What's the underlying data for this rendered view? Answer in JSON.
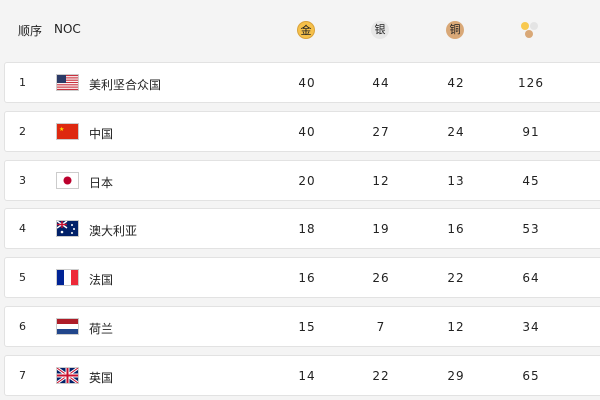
{
  "header": {
    "rank": "顺序",
    "noc": "NOC",
    "gold": "金",
    "silver": "银",
    "bronze": "铜",
    "total_icon": "medals-total-icon"
  },
  "colors": {
    "gold": "#f5c04a",
    "silver": "#e4e4e4",
    "bronze": "#d9a877"
  },
  "rows": [
    {
      "rank": "1",
      "flag": "usa",
      "name": "美利坚合众国",
      "gold": "40",
      "silver": "44",
      "bronze": "42",
      "total": "126"
    },
    {
      "rank": "2",
      "flag": "china",
      "name": "中国",
      "gold": "40",
      "silver": "27",
      "bronze": "24",
      "total": "91"
    },
    {
      "rank": "3",
      "flag": "japan",
      "name": "日本",
      "gold": "20",
      "silver": "12",
      "bronze": "13",
      "total": "45"
    },
    {
      "rank": "4",
      "flag": "australia",
      "name": "澳大利亚",
      "gold": "18",
      "silver": "19",
      "bronze": "16",
      "total": "53"
    },
    {
      "rank": "5",
      "flag": "france",
      "name": "法国",
      "gold": "16",
      "silver": "26",
      "bronze": "22",
      "total": "64"
    },
    {
      "rank": "6",
      "flag": "netherlands",
      "name": "荷兰",
      "gold": "15",
      "silver": "7",
      "bronze": "12",
      "total": "34"
    },
    {
      "rank": "7",
      "flag": "great-britain",
      "name": "英国",
      "gold": "14",
      "silver": "22",
      "bronze": "29",
      "total": "65"
    }
  ]
}
